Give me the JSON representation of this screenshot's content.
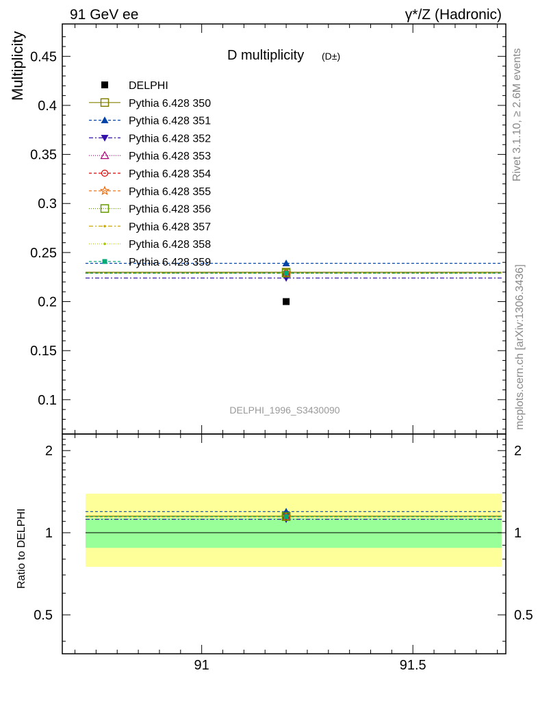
{
  "header": {
    "left": "91 GeV ee",
    "right": "γ*/Z (Hadronic)"
  },
  "side": {
    "rivet": "Rivet 3.1.10, ≥ 2.6M events",
    "mcplots": "mcplots.cern.ch [arXiv:1306.3436]"
  },
  "chart_data": {
    "type": "scatter",
    "title": "D multiplicity",
    "title_sub": "(D±)",
    "analysis_label": "DELPHI_1996_S3430090",
    "xlim": [
      90.67,
      91.72
    ],
    "x_ticks": [
      "91",
      "91.5"
    ],
    "main": {
      "ylabel": "Multiplicity",
      "ylim": [
        0.065,
        0.483
      ],
      "y_ticks": [
        "0.1",
        "0.15",
        "0.2",
        "0.25",
        "0.3",
        "0.35",
        "0.4",
        "0.45"
      ]
    },
    "ratio": {
      "ylabel": "Ratio to DELPHI",
      "ylim": [
        0.36,
        2.3
      ],
      "y_ticks": [
        "0.5",
        "1",
        "2"
      ],
      "band_inner": [
        0.88,
        1.13
      ],
      "band_outer": [
        0.75,
        1.39
      ],
      "colors": {
        "inner": "#99ff99",
        "outer": "#ffff99"
      }
    },
    "data_point": {
      "name": "DELPHI",
      "x": 91.2,
      "y": 0.2,
      "color": "#000000"
    },
    "series": [
      {
        "name": "Pythia 6.428 350",
        "y": 0.23,
        "color": "#808000",
        "dash": "",
        "marker": "open-square"
      },
      {
        "name": "Pythia 6.428 351",
        "y": 0.239,
        "color": "#0044aa",
        "dash": "4,3",
        "marker": "filled-triangle"
      },
      {
        "name": "Pythia 6.428 352",
        "y": 0.224,
        "color": "#3311aa",
        "dash": "6,3,2,3",
        "marker": "filled-triangle-down"
      },
      {
        "name": "Pythia 6.428 353",
        "y": 0.229,
        "color": "#aa0077",
        "dash": "1,2",
        "marker": "open-triangle"
      },
      {
        "name": "Pythia 6.428 354",
        "y": 0.229,
        "color": "#dd0000",
        "dash": "4,3",
        "marker": "open-circle"
      },
      {
        "name": "Pythia 6.428 355",
        "y": 0.229,
        "color": "#ee6600",
        "dash": "4,3",
        "marker": "open-star"
      },
      {
        "name": "Pythia 6.428 356",
        "y": 0.229,
        "color": "#669900",
        "dash": "1,2",
        "marker": "open-square"
      },
      {
        "name": "Pythia 6.428 357",
        "y": 0.229,
        "color": "#ccaa00",
        "dash": "6,3,2,3",
        "marker": "small-dot"
      },
      {
        "name": "Pythia 6.428 358",
        "y": 0.229,
        "color": "#aacc00",
        "dash": "1,2",
        "marker": "small-dot"
      },
      {
        "name": "Pythia 6.428 359",
        "y": 0.229,
        "color": "#00aa77",
        "dash": "4,3",
        "marker": "filled-square"
      }
    ]
  }
}
